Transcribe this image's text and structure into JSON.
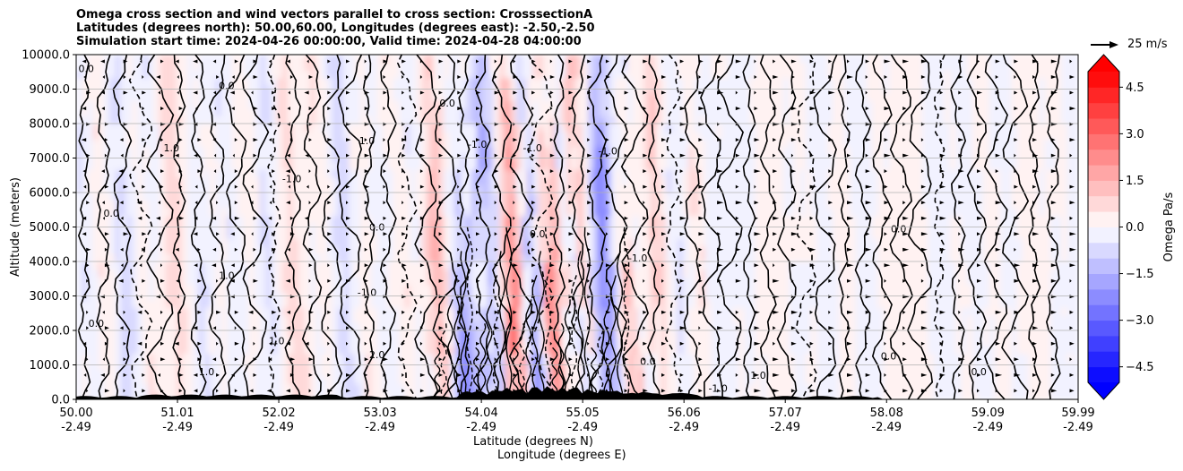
{
  "title": {
    "line1": "Omega cross section and wind vectors parallel to cross section: CrosssectionA",
    "line2": "Latitudes (degrees north): 50.00,60.00, Longitudes (degrees east): -2.50,-2.50",
    "line3": "Simulation start time: 2024-04-26 00:00:00, Valid time: 2024-04-28 04:00:00"
  },
  "chart_data": {
    "type": "heatmap",
    "subtype": "contourf cross-section with line contours and wind vectors",
    "ylabel": "Altitude (meters)",
    "xlabel_line1": "Latitude (degrees N)",
    "xlabel_line2": "Longitude (degrees E)",
    "ylim": [
      0,
      10000
    ],
    "y_ticks": [
      0,
      1000,
      2000,
      3000,
      4000,
      5000,
      6000,
      7000,
      8000,
      9000,
      10000
    ],
    "y_tick_labels": [
      "0.0",
      "1000.0",
      "2000.0",
      "3000.0",
      "4000.0",
      "5000.0",
      "6000.0",
      "7000.0",
      "8000.0",
      "9000.0",
      "10000.0"
    ],
    "x_range": [
      50.0,
      59.99
    ],
    "x_ticks": [
      {
        "lat": 50.0,
        "lat_label": "50.00",
        "lon_label": "-2.49"
      },
      {
        "lat": 51.01,
        "lat_label": "51.01",
        "lon_label": "-2.49"
      },
      {
        "lat": 52.02,
        "lat_label": "52.02",
        "lon_label": "-2.49"
      },
      {
        "lat": 53.03,
        "lat_label": "53.03",
        "lon_label": "-2.49"
      },
      {
        "lat": 54.04,
        "lat_label": "54.04",
        "lon_label": "-2.49"
      },
      {
        "lat": 55.05,
        "lat_label": "55.05",
        "lon_label": "-2.49"
      },
      {
        "lat": 56.06,
        "lat_label": "56.06",
        "lon_label": "-2.49"
      },
      {
        "lat": 57.07,
        "lat_label": "57.07",
        "lon_label": "-2.49"
      },
      {
        "lat": 58.08,
        "lat_label": "58.08",
        "lon_label": "-2.49"
      },
      {
        "lat": 59.09,
        "lat_label": "59.09",
        "lon_label": "-2.49"
      },
      {
        "lat": 59.99,
        "lat_label": "59.99",
        "lon_label": "-2.49"
      }
    ],
    "grid": "horizontal",
    "colorbar": {
      "label": "Omega Pa/s",
      "range": [
        -5.0,
        5.0
      ],
      "ticks": [
        -4.5,
        -3.0,
        -1.5,
        0.0,
        1.5,
        3.0,
        4.5
      ],
      "tick_labels": [
        "−4.5",
        "−3.0",
        "−1.5",
        "0.0",
        "1.5",
        "3.0",
        "4.5"
      ],
      "extend": "both",
      "colormap": "bwr",
      "levels_step": 0.5
    },
    "contour_levels": [
      -2.0,
      -1.0,
      0.0,
      1.0,
      2.0
    ],
    "contour_labels": [
      {
        "text": "0.0",
        "lat": 50.1,
        "alt": 9500
      },
      {
        "text": "0.0",
        "lat": 51.5,
        "alt": 9000
      },
      {
        "text": "0.0",
        "lat": 53.7,
        "alt": 8500
      },
      {
        "text": "1.0",
        "lat": 52.9,
        "alt": 7400
      },
      {
        "text": "-1.0",
        "lat": 52.15,
        "alt": 6300
      },
      {
        "text": "1.0",
        "lat": 50.95,
        "alt": 7200
      },
      {
        "text": "-1.0",
        "lat": 54.0,
        "alt": 7300
      },
      {
        "text": "-1.0",
        "lat": 54.55,
        "alt": 7200
      },
      {
        "text": "-1.0",
        "lat": 55.3,
        "alt": 7100
      },
      {
        "text": "0.0",
        "lat": 50.35,
        "alt": 5300
      },
      {
        "text": "0.0",
        "lat": 53.0,
        "alt": 4900
      },
      {
        "text": "0.0",
        "lat": 54.6,
        "alt": 4700
      },
      {
        "text": "0.0",
        "lat": 58.2,
        "alt": 4850
      },
      {
        "text": "-1.0",
        "lat": 55.6,
        "alt": 4000
      },
      {
        "text": "1.0",
        "lat": 51.5,
        "alt": 3500
      },
      {
        "text": "-1.0",
        "lat": 52.9,
        "alt": 3000
      },
      {
        "text": "0.0",
        "lat": 50.2,
        "alt": 2100
      },
      {
        "text": "1.0",
        "lat": 52.0,
        "alt": 1600
      },
      {
        "text": "2.0",
        "lat": 53.0,
        "alt": 1200
      },
      {
        "text": "1.0",
        "lat": 51.3,
        "alt": 700
      },
      {
        "text": "0.0",
        "lat": 58.1,
        "alt": 1150
      },
      {
        "text": "0.0",
        "lat": 59.0,
        "alt": 700
      },
      {
        "text": "-1.0",
        "lat": 56.4,
        "alt": 220
      },
      {
        "text": "1.0",
        "lat": 56.8,
        "alt": 600
      },
      {
        "text": "0.0",
        "lat": 55.7,
        "alt": 1000
      }
    ],
    "quiver_key": {
      "label": "25 m/s",
      "speed": 25
    }
  }
}
